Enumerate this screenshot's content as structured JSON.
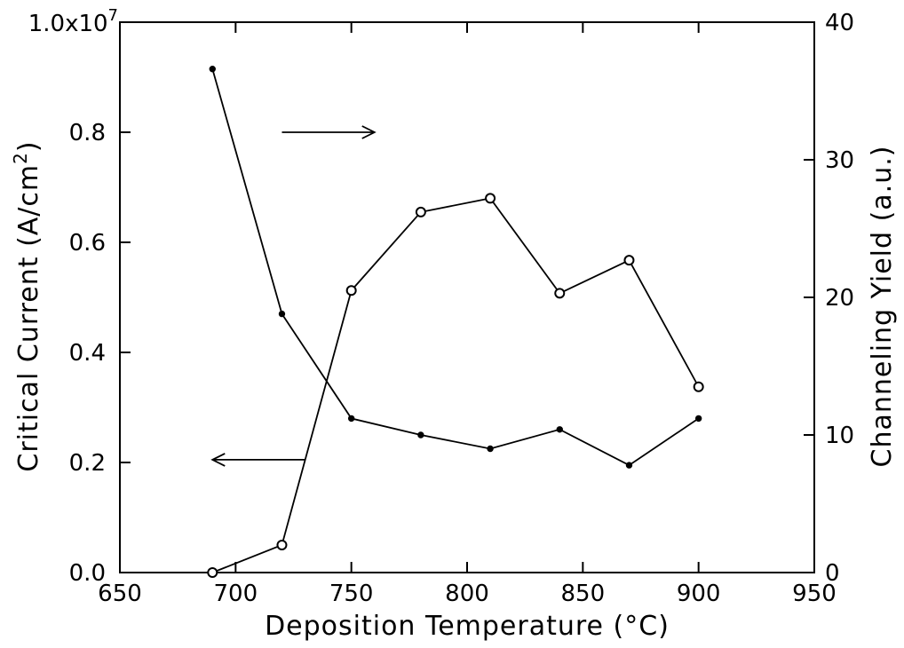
{
  "chart_data": {
    "type": "line",
    "xlabel": "Deposition Temperature (°C)",
    "ylabel": "Critical Current (A/cm²)",
    "ylabel_parts": {
      "before": "Critical Current (A/cm",
      "sup": "2",
      "after": ")"
    },
    "y2label": "Channeling Yield (a.u.)",
    "xlim": [
      650,
      950
    ],
    "ylim": [
      0,
      1.0
    ],
    "y2lim": [
      0,
      40
    ],
    "x_ticks": [
      "650",
      "700",
      "750",
      "800",
      "850",
      "900",
      "950"
    ],
    "x_tick_values": [
      650,
      700,
      750,
      800,
      850,
      900,
      950
    ],
    "y_ticks": [
      "0.0",
      "0.2",
      "0.4",
      "0.6",
      "0.8"
    ],
    "y_tick_values": [
      0.0,
      0.2,
      0.4,
      0.6,
      0.8
    ],
    "y_top_label": "1.0x10",
    "y_top_exponent": "7",
    "y2_ticks": [
      "0",
      "10",
      "20",
      "30",
      "40"
    ],
    "y2_tick_values": [
      0,
      10,
      20,
      30,
      40
    ],
    "grid": false,
    "series": [
      {
        "axis": "left",
        "marker": "filled-circle",
        "x": [
          690,
          720,
          750,
          780,
          810,
          840,
          870,
          900
        ],
        "y": [
          0.915,
          0.47,
          0.28,
          0.25,
          0.225,
          0.26,
          0.195,
          0.28
        ]
      },
      {
        "axis": "right",
        "marker": "open-circle",
        "x": [
          690,
          720,
          750,
          780,
          810,
          840,
          870,
          900
        ],
        "y": [
          0,
          2.0,
          20.5,
          26.2,
          27.2,
          20.3,
          22.7,
          13.5
        ]
      }
    ],
    "annotations": [
      {
        "type": "arrow",
        "direction": "right",
        "points_to": "right-axis",
        "x_from": 720,
        "x_to": 760,
        "y": 0.8
      },
      {
        "type": "arrow",
        "direction": "left",
        "points_to": "left-axis",
        "x_from": 730,
        "x_to": 690,
        "y": 0.205
      }
    ]
  }
}
